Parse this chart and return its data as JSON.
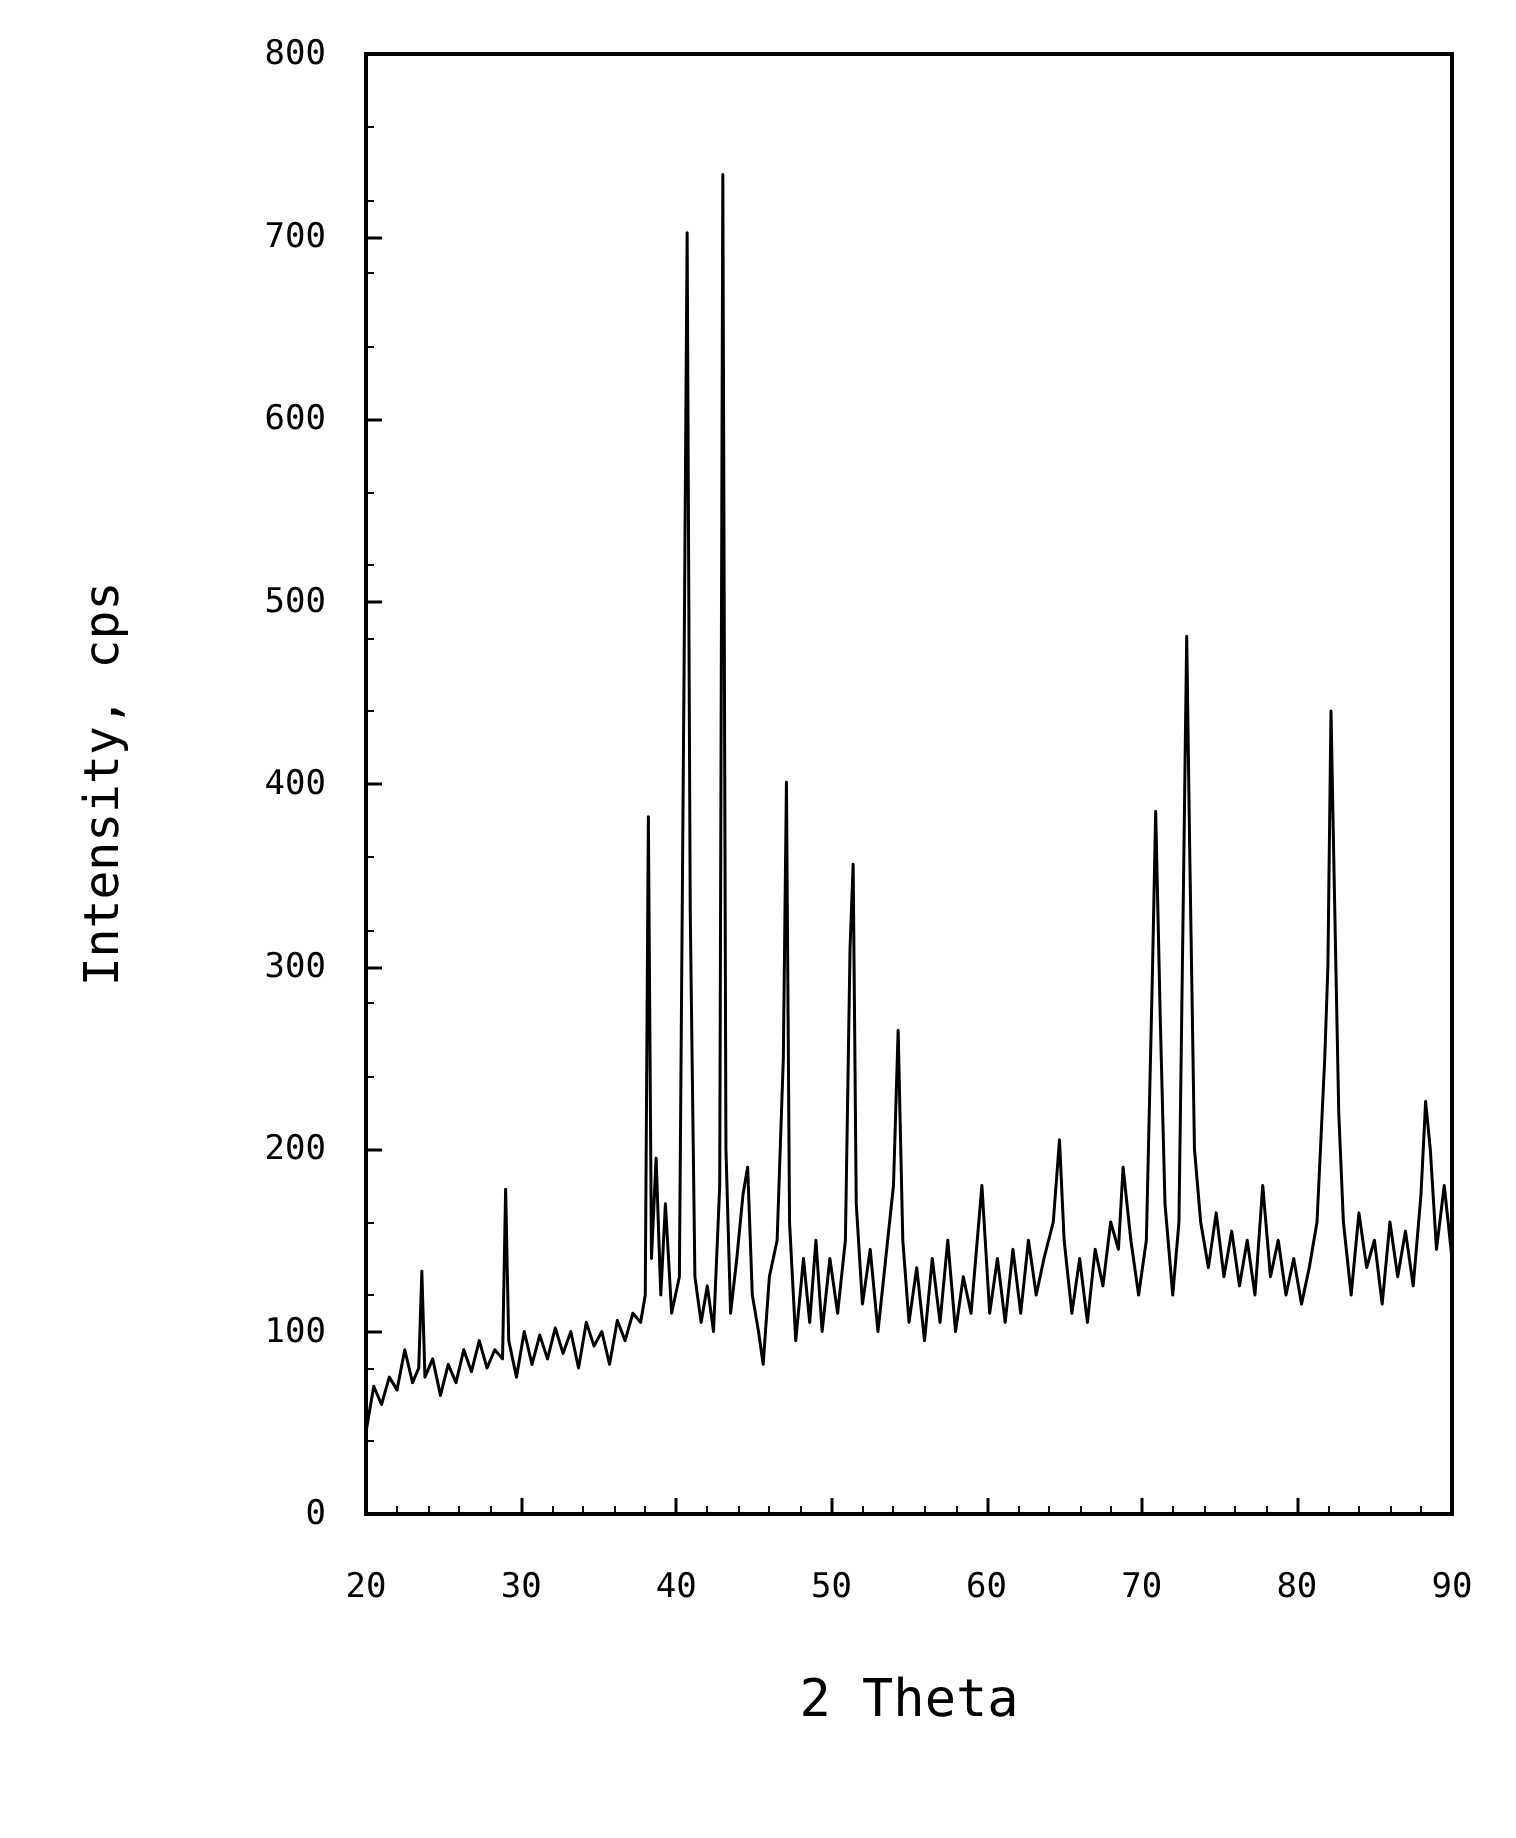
{
  "chart_data": {
    "type": "line",
    "xlabel": "2 Theta",
    "ylabel": "Intensity, cps",
    "x": [
      20,
      20.5,
      21,
      21.5,
      22,
      22.5,
      23,
      23.4,
      23.6,
      23.8,
      24.3,
      24.8,
      25.3,
      25.8,
      26.3,
      26.8,
      27.3,
      27.8,
      28.3,
      28.8,
      29.0,
      29.2,
      29.7,
      30.2,
      30.7,
      31.2,
      31.7,
      32.2,
      32.7,
      33.2,
      33.7,
      34.2,
      34.7,
      35.2,
      35.7,
      36.2,
      36.7,
      37.2,
      37.7,
      38.0,
      38.2,
      38.4,
      38.7,
      39.0,
      39.3,
      39.7,
      40.2,
      40.5,
      40.7,
      40.9,
      41.2,
      41.6,
      42.0,
      42.4,
      42.8,
      43.0,
      43.2,
      43.5,
      43.9,
      44.3,
      44.6,
      44.9,
      45.3,
      45.6,
      46.0,
      46.5,
      46.9,
      47.1,
      47.3,
      47.7,
      48.2,
      48.6,
      49.0,
      49.4,
      49.9,
      50.4,
      50.9,
      51.2,
      51.4,
      51.6,
      52.0,
      52.5,
      53.0,
      53.5,
      54.0,
      54.3,
      54.6,
      55.0,
      55.5,
      56.0,
      56.5,
      57.0,
      57.5,
      58.0,
      58.5,
      59.0,
      59.7,
      60.2,
      60.7,
      61.2,
      61.7,
      62.2,
      62.7,
      63.2,
      63.7,
      64.3,
      64.7,
      65.0,
      65.5,
      66.0,
      66.5,
      67.0,
      67.5,
      68.0,
      68.5,
      68.8,
      69.3,
      69.8,
      70.3,
      70.7,
      70.9,
      71.2,
      71.5,
      72.0,
      72.4,
      72.7,
      72.9,
      73.1,
      73.4,
      73.8,
      74.3,
      74.8,
      75.3,
      75.8,
      76.3,
      76.8,
      77.3,
      77.8,
      78.3,
      78.8,
      79.3,
      79.8,
      80.3,
      80.8,
      81.3,
      81.8,
      82.0,
      82.2,
      82.4,
      82.7,
      83.0,
      83.5,
      84.0,
      84.5,
      85.0,
      85.5,
      86.0,
      86.5,
      87.0,
      87.5,
      88.0,
      88.3,
      88.6,
      89.0,
      89.5,
      90.0
    ],
    "series": [
      {
        "color": "#000000",
        "values": [
          45,
          70,
          60,
          75,
          68,
          90,
          72,
          80,
          133,
          75,
          85,
          65,
          82,
          72,
          90,
          78,
          95,
          80,
          90,
          85,
          178,
          95,
          75,
          100,
          82,
          98,
          85,
          102,
          88,
          100,
          80,
          105,
          92,
          100,
          82,
          106,
          95,
          110,
          105,
          120,
          382,
          140,
          195,
          120,
          170,
          110,
          130,
          460,
          702,
          330,
          130,
          105,
          125,
          100,
          180,
          734,
          200,
          110,
          140,
          175,
          190,
          120,
          100,
          82,
          130,
          150,
          250,
          401,
          160,
          95,
          140,
          105,
          150,
          100,
          140,
          110,
          150,
          310,
          356,
          170,
          115,
          145,
          100,
          140,
          180,
          265,
          150,
          105,
          135,
          95,
          140,
          105,
          150,
          100,
          130,
          110,
          180,
          110,
          140,
          105,
          145,
          110,
          150,
          120,
          140,
          160,
          205,
          150,
          110,
          140,
          105,
          145,
          125,
          160,
          145,
          190,
          150,
          120,
          150,
          300,
          385,
          270,
          170,
          120,
          160,
          350,
          481,
          360,
          200,
          160,
          135,
          165,
          130,
          155,
          125,
          150,
          120,
          180,
          130,
          150,
          120,
          140,
          115,
          135,
          160,
          250,
          300,
          440,
          350,
          220,
          160,
          120,
          165,
          135,
          150,
          115,
          160,
          130,
          155,
          125,
          175,
          226,
          200,
          145,
          180,
          140
        ]
      }
    ],
    "xlim": [
      20,
      90
    ],
    "xticks": [
      20,
      30,
      40,
      50,
      60,
      70,
      80,
      90
    ],
    "ylim": [
      0,
      800
    ],
    "yticks": [
      0,
      100,
      200,
      300,
      400,
      500,
      600,
      700,
      800
    ],
    "grid": false,
    "marker": "none"
  }
}
